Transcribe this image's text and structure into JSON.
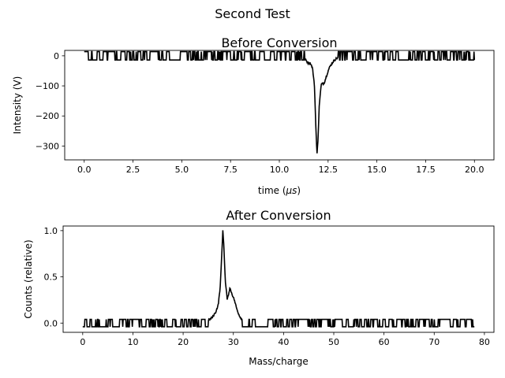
{
  "figure": {
    "suptitle": "Second Test"
  },
  "chart_data": [
    {
      "type": "line",
      "title": "Before Conversion",
      "xlabel_prefix": "time (",
      "xlabel_unit": "μs",
      "xlabel_suffix": ")",
      "ylabel": "Intensity (V)",
      "xlim": [
        -1.0,
        21.0
      ],
      "ylim": [
        -346,
        18
      ],
      "xticks": [
        0.0,
        2.5,
        5.0,
        7.5,
        10.0,
        12.5,
        15.0,
        17.5,
        20.0
      ],
      "xtick_labels": [
        "0.0",
        "2.5",
        "5.0",
        "7.5",
        "10.0",
        "12.5",
        "15.0",
        "17.5",
        "20.0"
      ],
      "yticks": [
        0,
        -100,
        -200,
        -300
      ],
      "ytick_labels": [
        "0",
        "−100",
        "−200",
        "−300"
      ],
      "grid": false,
      "legend": false,
      "series": [
        {
          "color": "#000000",
          "noise_levels": [
            -14,
            14
          ],
          "x_range": [
            0.0,
            20.0
          ],
          "features": [
            {
              "x": 11.3,
              "y": -10
            },
            {
              "x": 11.45,
              "y": -22
            },
            {
              "x": 11.6,
              "y": -25
            },
            {
              "x": 11.7,
              "y": -40
            },
            {
              "x": 11.8,
              "y": -100
            },
            {
              "x": 11.88,
              "y": -250
            },
            {
              "x": 11.93,
              "y": -330
            },
            {
              "x": 11.98,
              "y": -280
            },
            {
              "x": 12.05,
              "y": -160
            },
            {
              "x": 12.15,
              "y": -95
            },
            {
              "x": 12.3,
              "y": -90
            },
            {
              "x": 12.4,
              "y": -70
            },
            {
              "x": 12.5,
              "y": -50
            },
            {
              "x": 12.6,
              "y": -35
            },
            {
              "x": 12.75,
              "y": -20
            },
            {
              "x": 12.9,
              "y": -10
            },
            {
              "x": 13.0,
              "y": -6
            }
          ]
        }
      ]
    },
    {
      "type": "line",
      "title": "After Conversion",
      "xlabel": "Mass/charge",
      "ylabel": "Counts (relative)",
      "xlim": [
        -3.9,
        81.9
      ],
      "ylim": [
        -0.1,
        1.05
      ],
      "xticks": [
        0,
        10,
        20,
        30,
        40,
        50,
        60,
        70,
        80
      ],
      "xtick_labels": [
        "0",
        "10",
        "20",
        "30",
        "40",
        "50",
        "60",
        "70",
        "80"
      ],
      "yticks": [
        0.0,
        0.5,
        1.0
      ],
      "ytick_labels": [
        "0.0",
        "0.5",
        "1.0"
      ],
      "grid": false,
      "legend": false,
      "series": [
        {
          "color": "#000000",
          "noise_levels": [
            -0.04,
            0.04
          ],
          "x_range": [
            0.0,
            78.0
          ],
          "features": [
            {
              "x": 25.0,
              "y": 0.03
            },
            {
              "x": 25.8,
              "y": 0.06
            },
            {
              "x": 26.5,
              "y": 0.12
            },
            {
              "x": 27.0,
              "y": 0.2
            },
            {
              "x": 27.4,
              "y": 0.4
            },
            {
              "x": 27.7,
              "y": 0.75
            },
            {
              "x": 27.9,
              "y": 1.0
            },
            {
              "x": 28.1,
              "y": 0.85
            },
            {
              "x": 28.4,
              "y": 0.45
            },
            {
              "x": 28.8,
              "y": 0.25
            },
            {
              "x": 29.3,
              "y": 0.38
            },
            {
              "x": 29.7,
              "y": 0.32
            },
            {
              "x": 30.2,
              "y": 0.25
            },
            {
              "x": 30.7,
              "y": 0.15
            },
            {
              "x": 31.2,
              "y": 0.08
            },
            {
              "x": 31.8,
              "y": 0.03
            }
          ]
        }
      ]
    }
  ]
}
